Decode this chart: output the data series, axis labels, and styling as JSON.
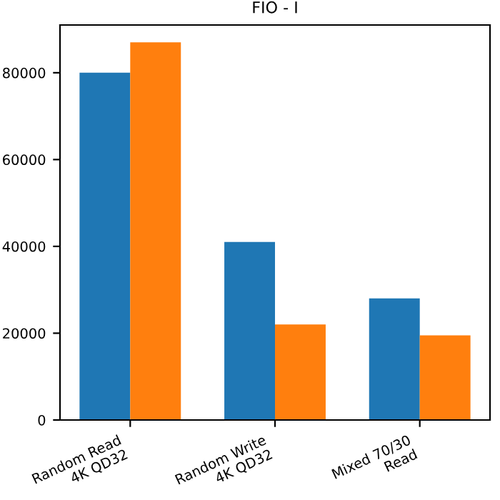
{
  "chart_data": {
    "type": "bar",
    "title": "FIO - I",
    "categories": [
      "Random Read\n4K QD32",
      "Random Write\n4K QD32",
      "Mixed 70/30\nRead"
    ],
    "series": [
      {
        "color": "#1f77b4",
        "values": [
          80000,
          41000,
          28000
        ]
      },
      {
        "color": "#ff7f0e",
        "values": [
          87000,
          22000,
          19500
        ]
      }
    ],
    "ylim": [
      0,
      91000
    ],
    "yticks": [
      0,
      20000,
      40000,
      60000,
      80000
    ],
    "grid": false,
    "legend": false
  }
}
